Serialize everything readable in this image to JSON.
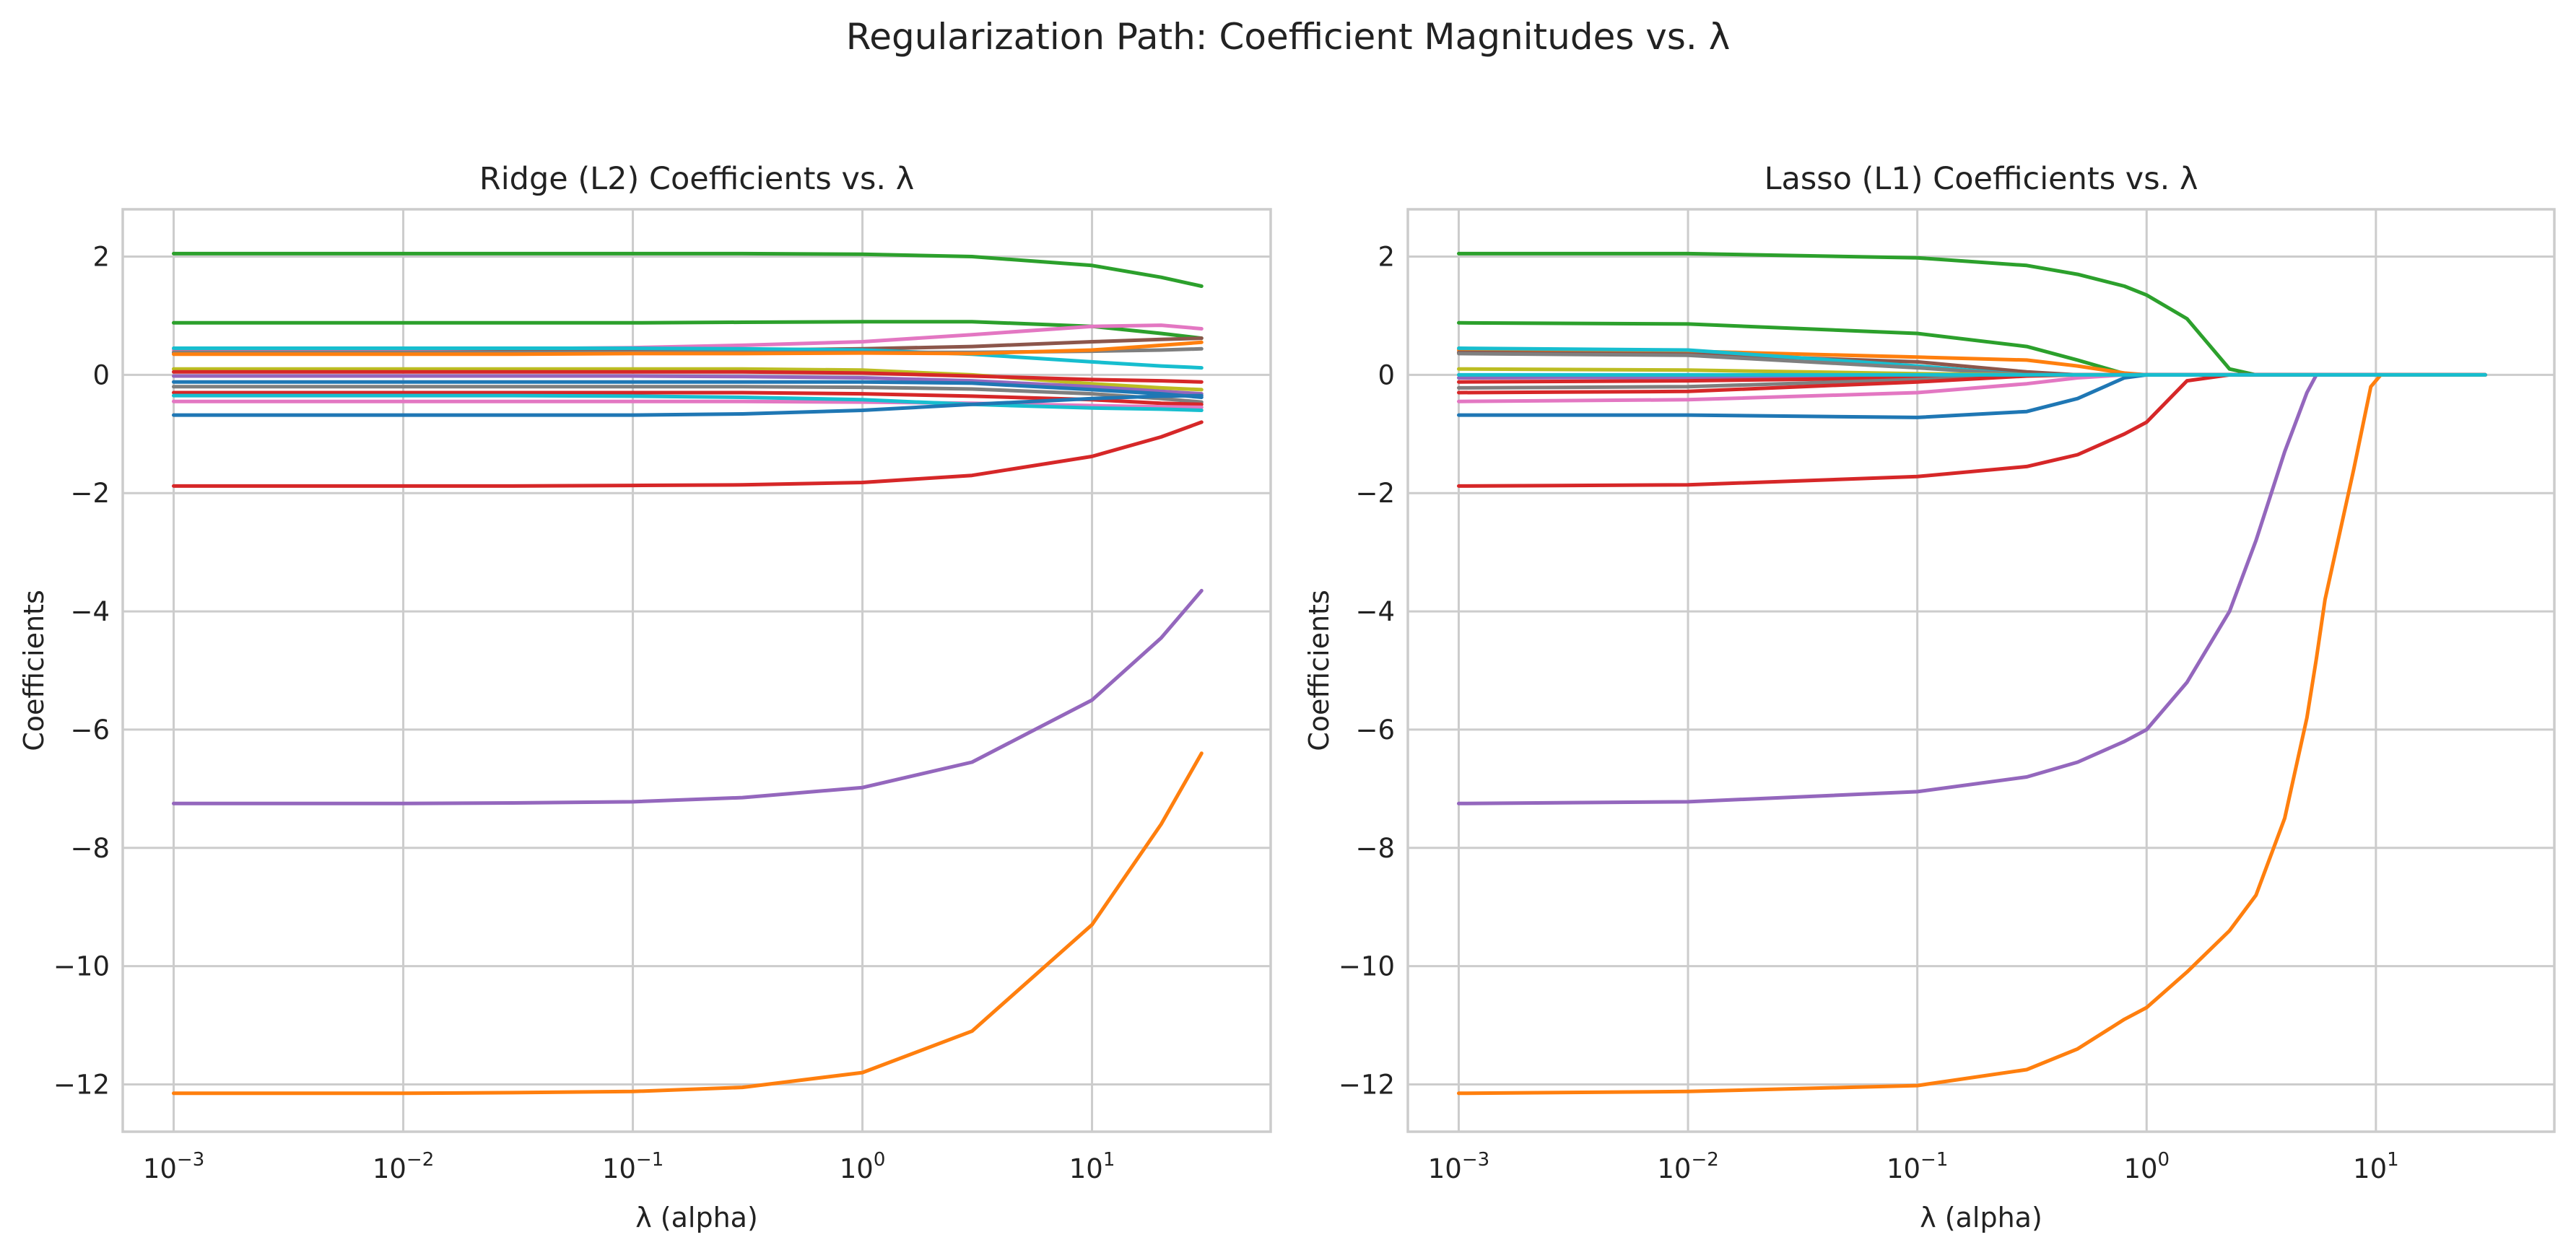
{
  "suptitle": "Regularization Path: Coefficient Magnitudes vs. λ",
  "chart_data": [
    {
      "type": "line",
      "title": "Ridge (L2) Coefficients vs. λ",
      "xlabel": "λ (alpha)",
      "ylabel": "Coefficients",
      "xscale": "log",
      "xlim": [
        0.0006,
        60
      ],
      "ylim": [
        -12.8,
        2.8
      ],
      "xticks": [
        {
          "base": "10",
          "exp": "−3",
          "value": 0.001
        },
        {
          "base": "10",
          "exp": "−2",
          "value": 0.01
        },
        {
          "base": "10",
          "exp": "−1",
          "value": 0.1
        },
        {
          "base": "10",
          "exp": "0",
          "value": 1
        },
        {
          "base": "10",
          "exp": "1",
          "value": 10
        }
      ],
      "yticks": [
        {
          "label": "2",
          "value": 2
        },
        {
          "label": "0",
          "value": 0
        },
        {
          "label": "−2",
          "value": -2
        },
        {
          "label": "−4",
          "value": -4
        },
        {
          "label": "−6",
          "value": -6
        },
        {
          "label": "−8",
          "value": -8
        },
        {
          "label": "−10",
          "value": -10
        },
        {
          "label": "−12",
          "value": -12
        }
      ],
      "grid": true,
      "x": [
        0.001,
        0.003,
        0.01,
        0.03,
        0.1,
        0.3,
        1,
        3,
        10,
        20,
        30
      ],
      "series": [
        {
          "color": "#2ca02c",
          "values": [
            2.05,
            2.05,
            2.05,
            2.05,
            2.05,
            2.05,
            2.04,
            2.0,
            1.85,
            1.65,
            1.5
          ]
        },
        {
          "color": "#2ca02c",
          "values": [
            0.88,
            0.88,
            0.88,
            0.88,
            0.88,
            0.89,
            0.9,
            0.9,
            0.82,
            0.7,
            0.62
          ]
        },
        {
          "color": "#e377c2",
          "values": [
            0.42,
            0.42,
            0.43,
            0.44,
            0.46,
            0.5,
            0.56,
            0.68,
            0.82,
            0.84,
            0.78
          ]
        },
        {
          "color": "#8c564b",
          "values": [
            0.38,
            0.38,
            0.38,
            0.39,
            0.4,
            0.42,
            0.44,
            0.48,
            0.56,
            0.6,
            0.62
          ]
        },
        {
          "color": "#17becf",
          "values": [
            0.45,
            0.45,
            0.45,
            0.45,
            0.45,
            0.44,
            0.42,
            0.35,
            0.22,
            0.15,
            0.12
          ]
        },
        {
          "color": "#7f7f7f",
          "values": [
            0.38,
            0.38,
            0.38,
            0.38,
            0.38,
            0.38,
            0.38,
            0.38,
            0.4,
            0.42,
            0.44
          ]
        },
        {
          "color": "#ff7f0e",
          "values": [
            0.35,
            0.35,
            0.35,
            0.35,
            0.36,
            0.36,
            0.37,
            0.36,
            0.42,
            0.5,
            0.55
          ]
        },
        {
          "color": "#bcbd22",
          "values": [
            0.1,
            0.1,
            0.1,
            0.1,
            0.1,
            0.1,
            0.08,
            0.0,
            -0.15,
            -0.22,
            -0.25
          ]
        },
        {
          "color": "#d62728",
          "values": [
            0.05,
            0.05,
            0.05,
            0.05,
            0.05,
            0.05,
            0.03,
            -0.02,
            -0.08,
            -0.1,
            -0.12
          ]
        },
        {
          "color": "#9467bd",
          "values": [
            -0.02,
            -0.02,
            -0.02,
            -0.02,
            -0.02,
            -0.03,
            -0.05,
            -0.1,
            -0.2,
            -0.28,
            -0.32
          ]
        },
        {
          "color": "#1f77b4",
          "values": [
            -0.12,
            -0.12,
            -0.12,
            -0.12,
            -0.12,
            -0.12,
            -0.12,
            -0.14,
            -0.25,
            -0.32,
            -0.38
          ]
        },
        {
          "color": "#7f7f7f",
          "values": [
            -0.2,
            -0.2,
            -0.2,
            -0.2,
            -0.2,
            -0.2,
            -0.21,
            -0.24,
            -0.32,
            -0.4,
            -0.46
          ]
        },
        {
          "color": "#d62728",
          "values": [
            -0.3,
            -0.3,
            -0.3,
            -0.3,
            -0.3,
            -0.3,
            -0.32,
            -0.36,
            -0.42,
            -0.48,
            -0.5
          ]
        },
        {
          "color": "#e377c2",
          "values": [
            -0.45,
            -0.45,
            -0.45,
            -0.45,
            -0.45,
            -0.45,
            -0.46,
            -0.48,
            -0.52,
            -0.54,
            -0.55
          ]
        },
        {
          "color": "#17becf",
          "values": [
            -0.35,
            -0.35,
            -0.35,
            -0.35,
            -0.36,
            -0.38,
            -0.42,
            -0.5,
            -0.56,
            -0.58,
            -0.6
          ]
        },
        {
          "color": "#1f77b4",
          "values": [
            -0.68,
            -0.68,
            -0.68,
            -0.68,
            -0.68,
            -0.66,
            -0.6,
            -0.5,
            -0.4,
            -0.36,
            -0.35
          ]
        },
        {
          "color": "#d62728",
          "values": [
            -1.88,
            -1.88,
            -1.88,
            -1.88,
            -1.87,
            -1.86,
            -1.82,
            -1.7,
            -1.38,
            -1.05,
            -0.8
          ]
        },
        {
          "color": "#9467bd",
          "values": [
            -7.25,
            -7.25,
            -7.25,
            -7.24,
            -7.22,
            -7.15,
            -6.98,
            -6.55,
            -5.5,
            -4.45,
            -3.65
          ]
        },
        {
          "color": "#ff7f0e",
          "values": [
            -12.15,
            -12.15,
            -12.15,
            -12.14,
            -12.12,
            -12.05,
            -11.8,
            -11.1,
            -9.3,
            -7.6,
            -6.4
          ]
        }
      ]
    },
    {
      "type": "line",
      "title": "Lasso (L1) Coefficients vs. λ",
      "xlabel": "λ (alpha)",
      "ylabel": "Coefficients",
      "xscale": "log",
      "xlim": [
        0.0006,
        60
      ],
      "ylim": [
        -12.8,
        2.8
      ],
      "xticks": [
        {
          "base": "10",
          "exp": "−3",
          "value": 0.001
        },
        {
          "base": "10",
          "exp": "−2",
          "value": 0.01
        },
        {
          "base": "10",
          "exp": "−1",
          "value": 0.1
        },
        {
          "base": "10",
          "exp": "0",
          "value": 1
        },
        {
          "base": "10",
          "exp": "1",
          "value": 10
        }
      ],
      "yticks": [
        {
          "label": "2",
          "value": 2
        },
        {
          "label": "0",
          "value": 0
        },
        {
          "label": "−2",
          "value": -2
        },
        {
          "label": "−4",
          "value": -4
        },
        {
          "label": "−6",
          "value": -6
        },
        {
          "label": "−8",
          "value": -8
        },
        {
          "label": "−10",
          "value": -10
        },
        {
          "label": "−12",
          "value": -12
        }
      ],
      "grid": true,
      "x": [
        0.001,
        0.01,
        0.1,
        0.3,
        0.5,
        0.8,
        1,
        1.5,
        2.3,
        3,
        4,
        5,
        5.5,
        6,
        8,
        9.5,
        10.5,
        30
      ],
      "series": [
        {
          "color": "#2ca02c",
          "values": [
            2.05,
            2.05,
            1.98,
            1.85,
            1.7,
            1.5,
            1.35,
            0.95,
            0.1,
            0,
            0,
            0,
            0,
            0,
            0,
            0,
            0,
            0
          ]
        },
        {
          "color": "#2ca02c",
          "values": [
            0.88,
            0.86,
            0.7,
            0.48,
            0.25,
            0.02,
            0,
            0,
            0,
            0,
            0,
            0,
            0,
            0,
            0,
            0,
            0,
            0
          ]
        },
        {
          "color": "#ff7f0e",
          "values": [
            0.42,
            0.4,
            0.3,
            0.25,
            0.15,
            0.03,
            0,
            0,
            0,
            0,
            0,
            0,
            0,
            0,
            0,
            0,
            0,
            0
          ]
        },
        {
          "color": "#8c564b",
          "values": [
            0.38,
            0.35,
            0.22,
            0.05,
            0,
            0,
            0,
            0,
            0,
            0,
            0,
            0,
            0,
            0,
            0,
            0,
            0,
            0
          ]
        },
        {
          "color": "#17becf",
          "values": [
            0.45,
            0.42,
            0.15,
            0,
            0,
            0,
            0,
            0,
            0,
            0,
            0,
            0,
            0,
            0,
            0,
            0,
            0,
            0
          ]
        },
        {
          "color": "#7f7f7f",
          "values": [
            0.36,
            0.33,
            0.12,
            0,
            0,
            0,
            0,
            0,
            0,
            0,
            0,
            0,
            0,
            0,
            0,
            0,
            0,
            0
          ]
        },
        {
          "color": "#bcbd22",
          "values": [
            0.1,
            0.08,
            0.02,
            0,
            0,
            0,
            0,
            0,
            0,
            0,
            0,
            0,
            0,
            0,
            0,
            0,
            0,
            0
          ]
        },
        {
          "color": "#9467bd",
          "values": [
            -0.05,
            -0.04,
            -0.01,
            0,
            0,
            0,
            0,
            0,
            0,
            0,
            0,
            0,
            0,
            0,
            0,
            0,
            0,
            0
          ]
        },
        {
          "color": "#d62728",
          "values": [
            -0.12,
            -0.1,
            -0.05,
            0,
            0,
            0,
            0,
            0,
            0,
            0,
            0,
            0,
            0,
            0,
            0,
            0,
            0,
            0
          ]
        },
        {
          "color": "#7f7f7f",
          "values": [
            -0.22,
            -0.2,
            -0.08,
            0,
            0,
            0,
            0,
            0,
            0,
            0,
            0,
            0,
            0,
            0,
            0,
            0,
            0,
            0
          ]
        },
        {
          "color": "#d62728",
          "values": [
            -0.3,
            -0.28,
            -0.12,
            -0.02,
            0,
            0,
            0,
            0,
            0,
            0,
            0,
            0,
            0,
            0,
            0,
            0,
            0,
            0
          ]
        },
        {
          "color": "#e377c2",
          "values": [
            -0.45,
            -0.42,
            -0.3,
            -0.15,
            -0.05,
            0,
            0,
            0,
            0,
            0,
            0,
            0,
            0,
            0,
            0,
            0,
            0,
            0
          ]
        },
        {
          "color": "#1f77b4",
          "values": [
            -0.68,
            -0.68,
            -0.72,
            -0.62,
            -0.4,
            -0.05,
            0,
            0,
            0,
            0,
            0,
            0,
            0,
            0,
            0,
            0,
            0,
            0
          ]
        },
        {
          "color": "#d62728",
          "values": [
            -1.88,
            -1.86,
            -1.72,
            -1.55,
            -1.35,
            -1.0,
            -0.8,
            -0.1,
            0,
            0,
            0,
            0,
            0,
            0,
            0,
            0,
            0,
            0
          ]
        },
        {
          "color": "#9467bd",
          "values": [
            -7.25,
            -7.22,
            -7.05,
            -6.8,
            -6.55,
            -6.2,
            -6.0,
            -5.2,
            -4.0,
            -2.8,
            -1.3,
            -0.3,
            0,
            0,
            0,
            0,
            0,
            0
          ]
        },
        {
          "color": "#ff7f0e",
          "values": [
            -12.15,
            -12.12,
            -12.02,
            -11.75,
            -11.4,
            -10.9,
            -10.7,
            -10.1,
            -9.4,
            -8.8,
            -7.5,
            -5.8,
            -4.8,
            -3.8,
            -1.6,
            -0.2,
            0,
            0
          ]
        },
        {
          "color": "#17becf",
          "values": [
            0,
            0,
            0,
            0,
            0,
            0,
            0,
            0,
            0,
            0,
            0,
            0,
            0,
            0,
            0,
            0,
            0,
            0
          ]
        }
      ]
    }
  ]
}
